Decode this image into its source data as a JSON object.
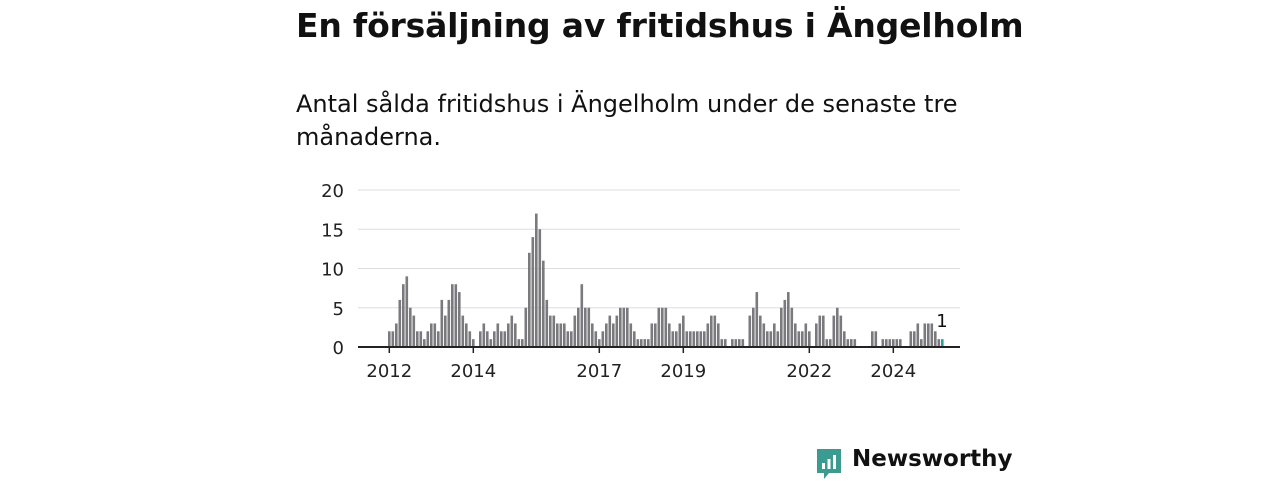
{
  "title": "En försäljning av fritidshus i Ängelholm",
  "subtitle": "Antal sålda fritidshus i Ängelholm under de senaste tre månaderna.",
  "brand": {
    "name": "Newsworthy",
    "color": "#3c9b91"
  },
  "colors": {
    "bar": "#7a7a7e",
    "bar_highlight": "#2aa396",
    "grid": "#dddddd",
    "axis": "#222222"
  },
  "chart_data": {
    "type": "bar",
    "title": "",
    "xlabel": "",
    "ylabel": "",
    "ylim": [
      0,
      20
    ],
    "yticks": [
      0,
      5,
      10,
      15,
      20
    ],
    "xtick_labels": [
      "2012",
      "2014",
      "2017",
      "2019",
      "2022",
      "2024"
    ],
    "grid": true,
    "legend": "none",
    "series": [
      {
        "values": [
          2,
          2,
          3,
          6,
          8,
          9,
          5,
          4,
          2,
          2,
          1,
          2,
          3,
          3,
          2,
          6,
          4,
          6,
          8,
          8,
          7,
          4,
          3,
          2,
          1,
          0,
          2,
          3,
          2,
          1,
          2,
          3,
          2,
          2,
          3,
          4,
          3,
          1,
          1,
          5,
          12,
          14,
          17,
          15,
          11,
          6,
          4,
          4,
          3,
          3,
          3,
          2,
          2,
          4,
          5,
          8,
          5,
          5,
          3,
          2,
          1,
          2,
          3,
          4,
          3,
          4,
          5,
          5,
          5,
          3,
          2,
          1,
          1,
          1,
          1,
          3,
          3,
          5,
          5,
          5,
          3,
          2,
          2,
          3,
          4,
          2,
          2,
          2,
          2,
          2,
          2,
          3,
          4,
          4,
          3,
          1,
          1,
          0,
          1,
          1,
          1,
          1,
          0,
          4,
          5,
          7,
          4,
          3,
          2,
          2,
          3,
          2,
          5,
          6,
          7,
          5,
          3,
          2,
          2,
          3,
          2,
          0,
          3,
          4,
          4,
          1,
          1,
          4,
          5,
          4,
          2,
          1,
          1,
          1,
          0,
          0,
          0,
          0,
          2,
          2,
          0,
          1,
          1,
          1,
          1,
          1,
          1,
          0,
          0,
          2,
          2,
          3,
          1,
          3,
          3,
          3,
          2,
          1
        ]
      }
    ],
    "highlight": {
      "value": 1,
      "label": "1"
    }
  }
}
